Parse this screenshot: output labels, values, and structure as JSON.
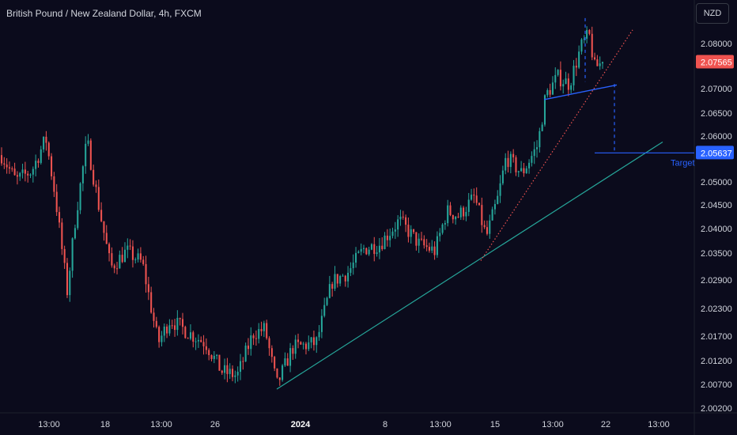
{
  "header": {
    "title": "British Pound / New Zealand Dollar, 4h, FXCM",
    "currency_button": "NZD"
  },
  "colors": {
    "background": "#0b0b1c",
    "up": "#26a69a",
    "down": "#ef5350",
    "support_line": "#26a69a",
    "channel_line": "#2962ff",
    "dotted_trend": "#ef5350",
    "target_line": "#2962ff",
    "axis_text": "#d1d4dc"
  },
  "chart_data": {
    "type": "candlestick",
    "title": "British Pound / New Zealand Dollar, 4h, FXCM",
    "y_axis": {
      "ticks": [
        "2.08000",
        "2.07000",
        "2.06500",
        "2.06000",
        "2.05000",
        "2.04500",
        "2.04000",
        "2.03500",
        "2.02900",
        "2.02300",
        "2.01700",
        "2.01200",
        "2.00700",
        "2.00200"
      ],
      "ylim": [
        2.0015,
        2.0875
      ]
    },
    "x_axis": {
      "ticks": [
        "13:00",
        "18",
        "13:00",
        "26",
        "2024",
        "8",
        "13:00",
        "15",
        "13:00",
        "22",
        "13:00"
      ],
      "bold_tick": "2024"
    },
    "current_price": {
      "value": 2.07565,
      "label": "2.07565",
      "color": "#ef5350"
    },
    "target": {
      "value": 2.05637,
      "label": "2.05637",
      "text": "Target",
      "color": "#2962ff"
    },
    "key_levels": {
      "start_price": 2.0565,
      "support_low": 2.0065,
      "rally_high": 2.0835
    },
    "candle_count": 230,
    "random_seed": 7
  }
}
